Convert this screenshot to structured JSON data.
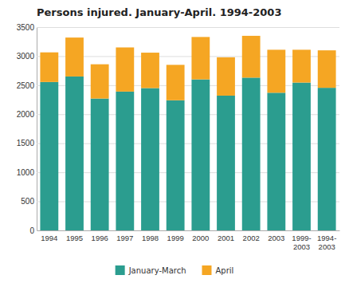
{
  "chart_data": {
    "type": "bar",
    "stacked": true,
    "title": "Persons injured. January-April. 1994-2003",
    "categories": [
      "1994",
      "1995",
      "1996",
      "1997",
      "1998",
      "1999",
      "2000",
      "2001",
      "2002",
      "2003",
      "1999-\n2003",
      "1994-\n2003"
    ],
    "series": [
      {
        "name": "January-March",
        "color": "#2b9d8f",
        "values": [
          2555,
          2650,
          2270,
          2390,
          2450,
          2240,
          2600,
          2320,
          2630,
          2370,
          2545,
          2455
        ]
      },
      {
        "name": "April",
        "color": "#f5a623",
        "values": [
          510,
          670,
          590,
          760,
          610,
          610,
          730,
          660,
          720,
          740,
          565,
          645
        ]
      }
    ],
    "ylim": [
      0,
      3500
    ],
    "yticks": [
      0,
      500,
      1000,
      1500,
      2000,
      2500,
      3000,
      3500
    ],
    "grid": true,
    "legend": "bottom"
  }
}
